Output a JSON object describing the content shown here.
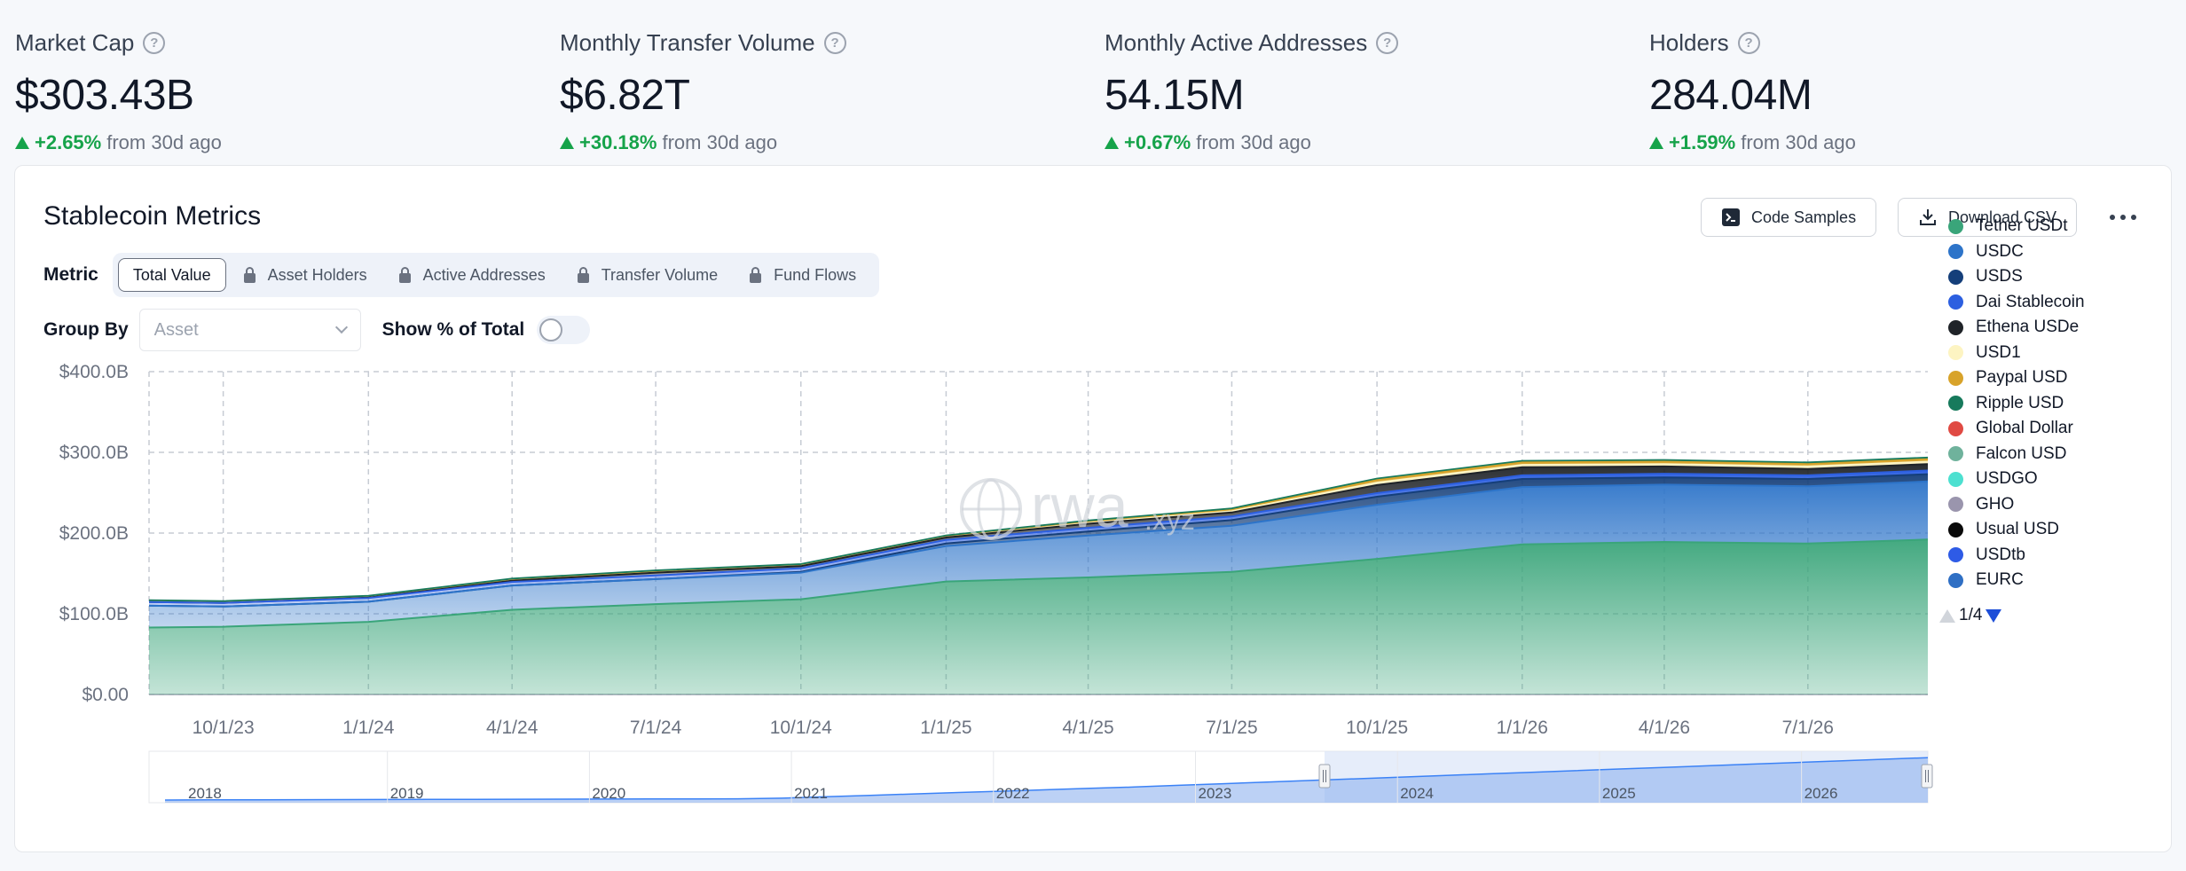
{
  "stats": [
    {
      "label": "Market Cap",
      "value": "$303.43B",
      "change": "+2.65%",
      "suffix": "from 30d ago"
    },
    {
      "label": "Monthly Transfer Volume",
      "value": "$6.82T",
      "change": "+30.18%",
      "suffix": "from 30d ago"
    },
    {
      "label": "Monthly Active Addresses",
      "value": "54.15M",
      "change": "+0.67%",
      "suffix": "from 30d ago"
    },
    {
      "label": "Holders",
      "value": "284.04M",
      "change": "+1.59%",
      "suffix": "from 30d ago"
    }
  ],
  "card": {
    "title": "Stablecoin Metrics",
    "code_samples_label": "Code Samples",
    "download_label": "Download CSV"
  },
  "metric": {
    "label": "Metric",
    "tabs": [
      "Total Value",
      "Asset Holders",
      "Active Addresses",
      "Transfer Volume",
      "Fund Flows"
    ],
    "active": "Total Value"
  },
  "group_by": {
    "label": "Group By",
    "placeholder": "Asset"
  },
  "show_pct": {
    "label": "Show % of Total",
    "on": false
  },
  "watermark": {
    "text": "rwa",
    "suffix": ".xyz"
  },
  "legend": {
    "items": [
      {
        "name": "Tether USDt",
        "color": "#3aa57a"
      },
      {
        "name": "USDC",
        "color": "#2d74c9"
      },
      {
        "name": "USDS",
        "color": "#153f7a"
      },
      {
        "name": "Dai Stablecoin",
        "color": "#2c5fe0"
      },
      {
        "name": "Ethena USDe",
        "color": "#1f2328"
      },
      {
        "name": "USD1",
        "color": "#fdf4c2"
      },
      {
        "name": "Paypal USD",
        "color": "#d8a32a"
      },
      {
        "name": "Ripple USD",
        "color": "#177a5c"
      },
      {
        "name": "Global Dollar",
        "color": "#e04a43"
      },
      {
        "name": "Falcon USD",
        "color": "#6fb29c"
      },
      {
        "name": "USDGO",
        "color": "#4de0d0"
      },
      {
        "name": "GHO",
        "color": "#9a95ad"
      },
      {
        "name": "Usual USD",
        "color": "#0a0a0a"
      },
      {
        "name": "USDtb",
        "color": "#2e5be6"
      },
      {
        "name": "EURC",
        "color": "#2f6fc4"
      }
    ],
    "page": "1/4"
  },
  "chart_data": {
    "type": "area",
    "stacked": true,
    "ylim": [
      0,
      400
    ],
    "yunit": "B",
    "y_ticks": [
      "$0.00",
      "$100.0B",
      "$200.0B",
      "$300.0B",
      "$400.0B"
    ],
    "x_ticks": [
      "10/1/23",
      "1/1/24",
      "4/1/24",
      "7/1/24",
      "10/1/24",
      "1/1/25",
      "4/1/25",
      "7/1/25",
      "10/1/25",
      "1/1/26",
      "4/1/26",
      "7/1/26"
    ],
    "x_dates": [
      "2023-08-15",
      "2023-10-01",
      "2024-01-01",
      "2024-04-01",
      "2024-07-01",
      "2024-10-01",
      "2025-01-01",
      "2025-04-01",
      "2025-07-01",
      "2025-10-01",
      "2026-01-01",
      "2026-04-01",
      "2026-07-01",
      "2026-09-15"
    ],
    "x_range": [
      "2023-08-15",
      "2026-09-15"
    ],
    "grid": true,
    "legend_position": "right",
    "series": [
      {
        "name": "Tether USDt",
        "color": "#3aa57a",
        "values": [
          83,
          84,
          90,
          105,
          112,
          118,
          140,
          145,
          152,
          168,
          186,
          189,
          187,
          192
        ]
      },
      {
        "name": "USDC",
        "color": "#2d74c9",
        "values": [
          27,
          25,
          25,
          30,
          31,
          33,
          44,
          52,
          57,
          67,
          71,
          71,
          71,
          72
        ]
      },
      {
        "name": "USDS",
        "color": "#153f7a",
        "values": [
          0,
          0,
          0,
          0,
          0,
          1,
          3,
          5,
          7,
          10,
          10,
          9,
          9,
          9
        ]
      },
      {
        "name": "Dai Stablecoin",
        "color": "#2c5fe0",
        "values": [
          4.5,
          4.5,
          4.5,
          4.5,
          4.5,
          4.5,
          4.5,
          4.5,
          4.5,
          4.5,
          4.5,
          4.5,
          4.5,
          4.5
        ]
      },
      {
        "name": "Ethena USDe",
        "color": "#1f2328",
        "values": [
          0,
          0,
          0.5,
          1.5,
          3.5,
          2.5,
          3,
          5,
          5,
          10,
          10,
          9,
          8,
          8
        ]
      },
      {
        "name": "USD1",
        "color": "#fdf4c2",
        "values": [
          0,
          0,
          0,
          0,
          0,
          0,
          0,
          1,
          1.5,
          3,
          3,
          3,
          3,
          3
        ]
      },
      {
        "name": "Paypal USD",
        "color": "#d8a32a",
        "values": [
          0.2,
          0.2,
          0.2,
          0.5,
          0.7,
          0.5,
          0.5,
          1,
          1.5,
          3,
          3,
          3,
          3,
          3
        ]
      },
      {
        "name": "Ripple USD",
        "color": "#177a5c",
        "values": [
          2,
          2,
          2,
          2,
          2,
          2,
          2,
          2,
          2,
          2,
          2,
          2,
          2,
          2
        ]
      }
    ],
    "navigator_ticks": [
      "2018",
      "2019",
      "2020",
      "2021",
      "2022",
      "2023",
      "2024",
      "2025",
      "2026"
    ]
  }
}
